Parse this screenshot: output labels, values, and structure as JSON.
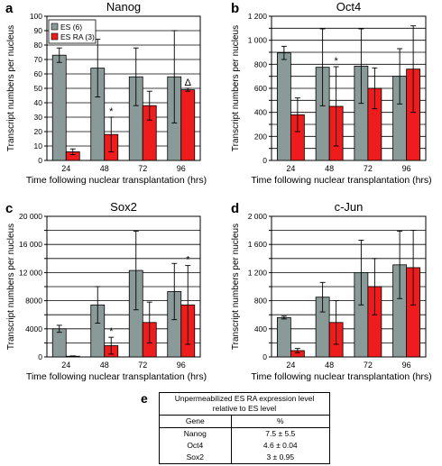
{
  "colors": {
    "es": "#8a9a98",
    "es_ra": "#ee1c1c",
    "frame": "#000000",
    "grid": "#000000"
  },
  "chart_data": [
    {
      "type": "bar",
      "panel_letter": "a",
      "title": "Nanog",
      "xlabel": "Time following nuclear transplantation (hrs)",
      "ylabel": "Transcript numbers per nucleus",
      "categories": [
        "24",
        "48",
        "72",
        "96"
      ],
      "ylim": [
        0,
        100
      ],
      "yticks": [
        0,
        10,
        20,
        30,
        40,
        50,
        60,
        70,
        80,
        90,
        100
      ],
      "ytick_labels": [
        "0",
        "10",
        "20",
        "30",
        "40",
        "50",
        "60",
        "70",
        "80",
        "90",
        "100"
      ],
      "legend": "top-left",
      "series": [
        {
          "name": "ES (6)",
          "values": [
            73,
            64,
            58,
            58
          ],
          "err": [
            5,
            20,
            20,
            32
          ]
        },
        {
          "name": "ES RA (3)",
          "values": [
            6,
            18,
            38,
            49
          ],
          "err": [
            2,
            12,
            10,
            1
          ]
        }
      ],
      "annotations": [
        {
          "category": "48",
          "series": 1,
          "text": "*"
        },
        {
          "category": "96",
          "series": 1,
          "text": "Δ"
        }
      ]
    },
    {
      "type": "bar",
      "panel_letter": "b",
      "title": "Oct4",
      "xlabel": "Time following nuclear transplantation (hrs)",
      "ylabel": "Transcript numbers per nucleus",
      "categories": [
        "24",
        "48",
        "72",
        "96"
      ],
      "ylim": [
        0,
        1200
      ],
      "yticks": [
        0,
        100,
        200,
        300,
        400,
        500,
        600,
        700,
        800,
        900,
        1000,
        1100,
        1200
      ],
      "ytick_labels": [
        "0",
        "",
        "200",
        "",
        "400",
        "",
        "600",
        "",
        "800",
        "",
        "1 000",
        "",
        "1 200"
      ],
      "series": [
        {
          "name": "ES",
          "values": [
            895,
            775,
            785,
            700
          ],
          "err": [
            55,
            320,
            310,
            230
          ]
        },
        {
          "name": "ES RA",
          "values": [
            380,
            450,
            600,
            760
          ],
          "err": [
            140,
            330,
            170,
            360
          ]
        }
      ],
      "annotations": [
        {
          "category": "48",
          "series": 1,
          "text": "*"
        }
      ]
    },
    {
      "type": "bar",
      "panel_letter": "c",
      "title": "Sox2",
      "xlabel": "Time following nuclear transplantation (hrs)",
      "ylabel": "Transcript numbers per nucleus",
      "categories": [
        "24",
        "48",
        "72",
        "96"
      ],
      "ylim": [
        0,
        20000
      ],
      "yticks": [
        0,
        2000,
        4000,
        6000,
        8000,
        10000,
        12000,
        14000,
        16000,
        18000,
        20000
      ],
      "ytick_labels": [
        "0",
        "",
        "4000",
        "",
        "8000",
        "",
        "12 000",
        "",
        "16 000",
        "",
        "20 000"
      ],
      "series": [
        {
          "name": "ES",
          "values": [
            4000,
            7400,
            12300,
            9300
          ],
          "err": [
            500,
            2600,
            5600,
            4000
          ]
        },
        {
          "name": "ES RA",
          "values": [
            100,
            1600,
            4900,
            7400
          ],
          "err": [
            50,
            1200,
            2900,
            5600
          ]
        }
      ],
      "annotations": [
        {
          "category": "48",
          "series": 1,
          "text": "*"
        },
        {
          "category": "96",
          "series": 1,
          "text": "*"
        }
      ]
    },
    {
      "type": "bar",
      "panel_letter": "d",
      "title": "c-Jun",
      "xlabel": "Time following nuclear transplantation (hrs)",
      "ylabel": "Transcript numbers per nucleus",
      "categories": [
        "24",
        "48",
        "72",
        "96"
      ],
      "ylim": [
        0,
        2000
      ],
      "yticks": [
        0,
        200,
        400,
        600,
        800,
        1000,
        1200,
        1400,
        1600,
        1800,
        2000
      ],
      "ytick_labels": [
        "0",
        "",
        "400",
        "",
        "800",
        "",
        "1 200",
        "",
        "1 600",
        "",
        "2 000"
      ],
      "series": [
        {
          "name": "ES",
          "values": [
            560,
            850,
            1200,
            1310
          ],
          "err": [
            20,
            210,
            460,
            480
          ]
        },
        {
          "name": "ES RA",
          "values": [
            90,
            490,
            1000,
            1270
          ],
          "err": [
            30,
            310,
            400,
            530
          ]
        }
      ],
      "annotations": []
    }
  ],
  "table": {
    "panel_letter": "e",
    "caption": "Unpermeabilized ES RA expression level relative to ES level",
    "columns": [
      "Gene",
      "%"
    ],
    "rows": [
      [
        "Nanog",
        "7.5 ± 5.5"
      ],
      [
        "Oct4",
        "4.6 ± 0.04"
      ],
      [
        "Sox2",
        "3 ± 0.95"
      ]
    ]
  }
}
